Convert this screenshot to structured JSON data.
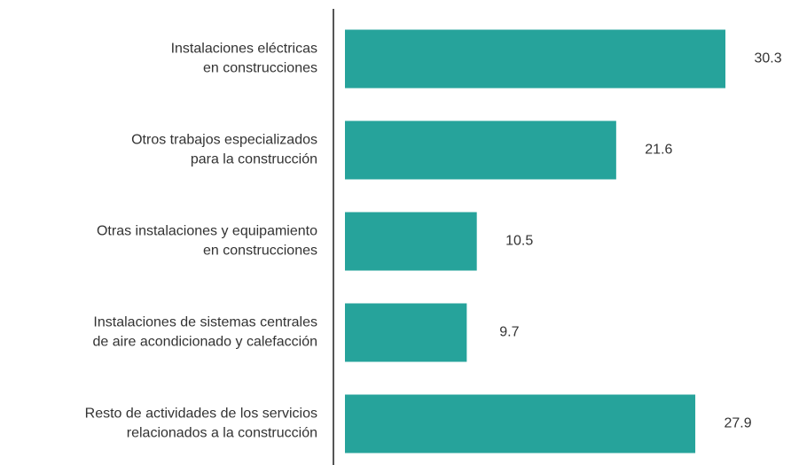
{
  "chart_data": {
    "type": "barh",
    "categories": [
      [
        "Instalaciones eléctricas",
        "en construcciones"
      ],
      [
        "Otros trabajos especializados",
        "para la construcción"
      ],
      [
        "Otras instalaciones y equipamiento",
        "en construcciones"
      ],
      [
        "Instalaciones de sistemas centrales",
        "de aire acondicionado y calefacción"
      ],
      [
        "Resto de actividades de los servicios",
        "relacionados a la construcción"
      ]
    ],
    "values": [
      30.3,
      21.6,
      10.5,
      9.7,
      27.9
    ],
    "color": "#26a39b",
    "xlim": [
      0,
      35
    ]
  }
}
